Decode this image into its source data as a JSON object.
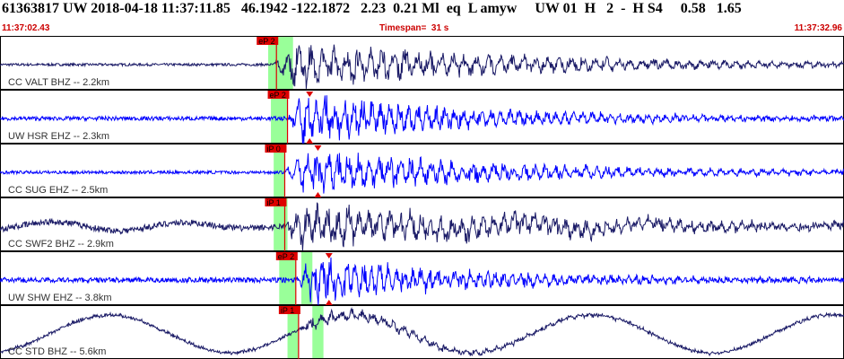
{
  "header": {
    "event_line": "61363817 UW 2018-04-18 11:37:11.85   46.1942 -122.1872   2.23  0.21 Ml  eq  L amyw     UW 01  H   2  -  H S4     0.58   1.65",
    "time_start": "11:37:02.43",
    "timespan": "Timespan=  31 s",
    "time_end": "11:37:32.96"
  },
  "colors": {
    "trace_dark": "#1a1a66",
    "trace_blue": "#0000ff",
    "pick_red": "#dd0000",
    "window_green": "#99ff99",
    "label_text": "#333333"
  },
  "chart_data": {
    "type": "line",
    "title": "",
    "xlabel": "",
    "ylabel": "",
    "x_range_s": [
      0,
      30.53
    ],
    "time_start": "11:37:02.43",
    "time_end": "11:37:32.96",
    "traces": [
      {
        "label": "CC VALT BHZ -- 2.2km",
        "color": "dark",
        "style": "local",
        "onset_s": 9.9,
        "noise": 0.05,
        "peak": 0.95,
        "decay": 9,
        "freq": 7,
        "picks": [
          {
            "label": "eP 2",
            "t": 10.0
          }
        ],
        "triangles": [],
        "green": [
          [
            9.7,
            10.6
          ]
        ]
      },
      {
        "label": "UW HSR EHZ -- 2.3km",
        "color": "blue",
        "style": "local",
        "onset_s": 10.4,
        "noise": 0.08,
        "peak": 1.0,
        "decay": 7,
        "freq": 9,
        "picks": [
          {
            "label": "eP 2",
            "t": 10.4
          }
        ],
        "triangles": [
          {
            "t": 11.2,
            "dir": "down"
          },
          {
            "t": 11.2,
            "dir": "up"
          }
        ],
        "green": [
          [
            9.8,
            10.4
          ]
        ]
      },
      {
        "label": "CC SUG EHZ -- 2.5km",
        "color": "blue",
        "style": "local",
        "onset_s": 10.3,
        "noise": 0.06,
        "peak": 0.95,
        "decay": 8,
        "freq": 8,
        "picks": [
          {
            "label": "iP 0",
            "t": 10.3
          }
        ],
        "triangles": [
          {
            "t": 11.5,
            "dir": "down"
          },
          {
            "t": 11.5,
            "dir": "up"
          }
        ],
        "green": [
          [
            9.9,
            10.3
          ]
        ]
      },
      {
        "label": "CC SWF2 BHZ -- 2.9km",
        "color": "dark",
        "style": "mixed",
        "onset_s": 10.3,
        "noise": 0.12,
        "peak": 0.9,
        "decay": 10,
        "freq": 8,
        "picks": [
          {
            "label": "iP 1",
            "t": 10.3
          }
        ],
        "triangles": [],
        "green": [
          [
            9.9,
            10.4
          ]
        ]
      },
      {
        "label": "UW SHW EHZ -- 3.8km",
        "color": "blue",
        "style": "local",
        "onset_s": 10.7,
        "noise": 0.1,
        "peak": 1.0,
        "decay": 6,
        "freq": 10,
        "picks": [
          {
            "label": "eP 2",
            "t": 10.7
          }
        ],
        "triangles": [
          {
            "t": 11.9,
            "dir": "down"
          },
          {
            "t": 11.9,
            "dir": "up"
          }
        ],
        "green": [
          [
            10.1,
            10.7
          ],
          [
            10.9,
            11.3
          ]
        ]
      },
      {
        "label": "CC STD BHZ -- 5.6km",
        "color": "dark",
        "style": "microseism",
        "onset_s": 10.8,
        "noise": 0.05,
        "peak": 0.35,
        "decay": 5,
        "freq": 8,
        "picks": [
          {
            "label": "iP 1",
            "t": 10.8
          }
        ],
        "triangles": [],
        "green": [
          [
            10.4,
            10.8
          ],
          [
            11.3,
            11.7
          ]
        ]
      }
    ]
  }
}
